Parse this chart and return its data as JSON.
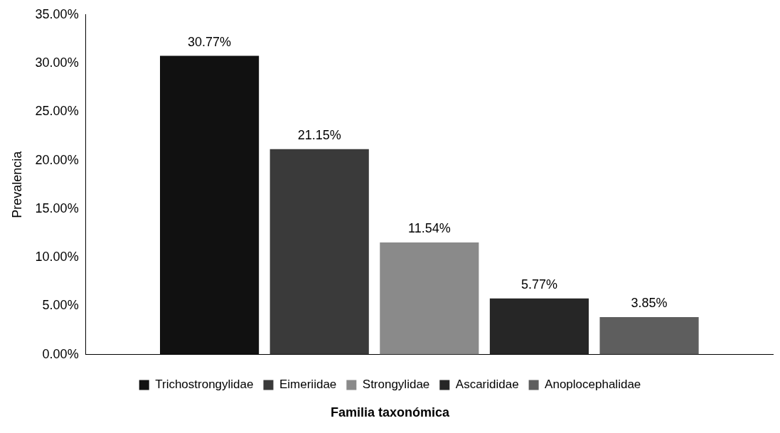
{
  "chart_data": {
    "type": "bar",
    "xlabel": "Familia taxonómica",
    "ylabel": "Prevalencia",
    "categories": [
      null
    ],
    "series": [
      {
        "name": "Trichostrongylidae",
        "color": "#111111",
        "values": [
          30.77
        ],
        "value_labels": [
          "30.77%"
        ]
      },
      {
        "name": "Eimeriidae",
        "color": "#3a3a3a",
        "values": [
          21.15
        ],
        "value_labels": [
          "21.15%"
        ]
      },
      {
        "name": "Strongylidae",
        "color": "#8a8a8a",
        "values": [
          11.54
        ],
        "value_labels": [
          "11.54%"
        ]
      },
      {
        "name": "Ascarididae",
        "color": "#262626",
        "values": [
          5.77
        ],
        "value_labels": [
          "5.77%"
        ]
      },
      {
        "name": "Anoplocephalidae",
        "color": "#5e5e5e",
        "values": [
          3.85
        ],
        "value_labels": [
          "3.85%"
        ]
      }
    ],
    "ylim": [
      0,
      35
    ],
    "yticks": [
      {
        "value": 0,
        "label": "0.00%"
      },
      {
        "value": 5,
        "label": "5.00%"
      },
      {
        "value": 10,
        "label": "10.00%"
      },
      {
        "value": 15,
        "label": "15.00%"
      },
      {
        "value": 20,
        "label": "20.00%"
      },
      {
        "value": 25,
        "label": "25.00%"
      },
      {
        "value": 30,
        "label": "30.00%"
      },
      {
        "value": 35,
        "label": "35.00%"
      }
    ],
    "grid": false,
    "legend": "bottom"
  }
}
